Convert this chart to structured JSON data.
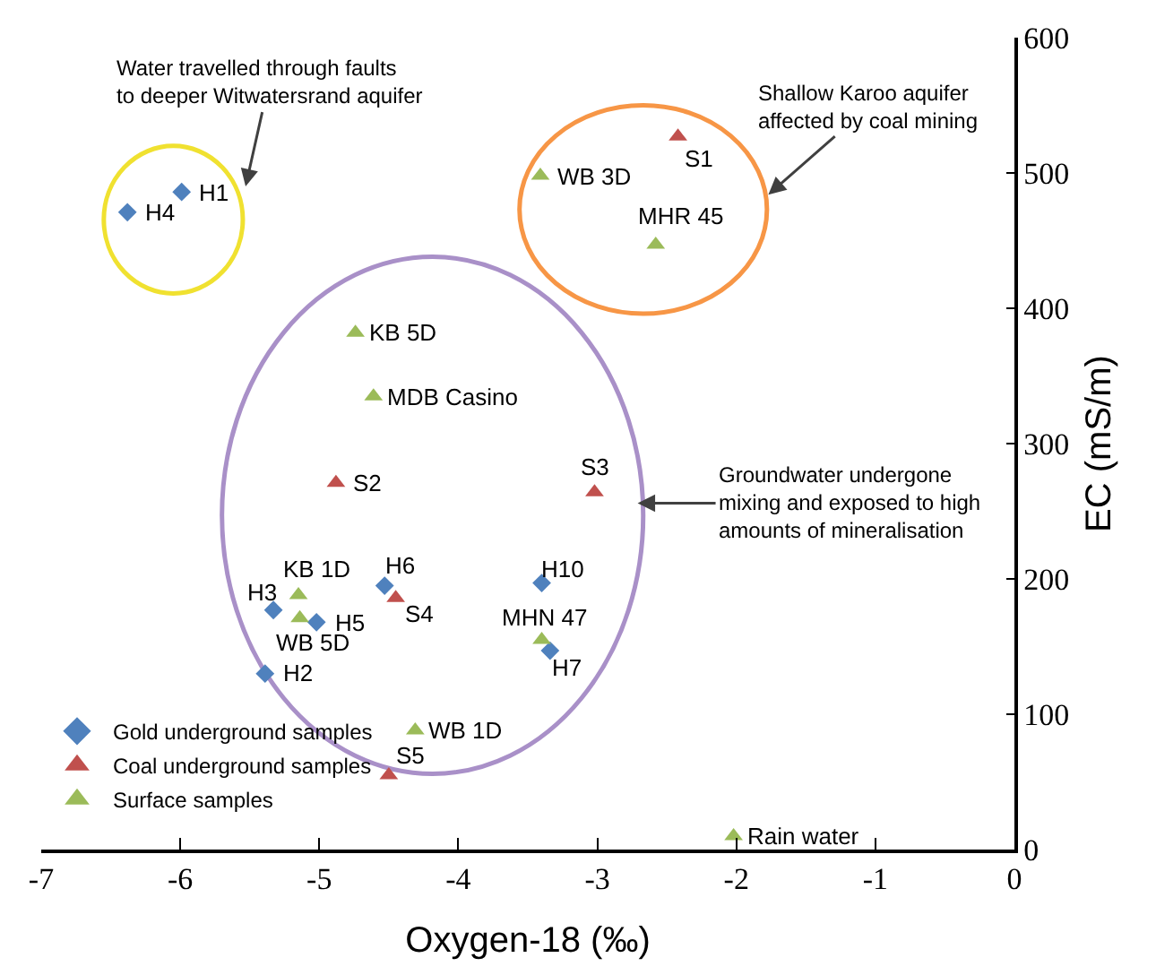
{
  "chart_data": {
    "type": "scatter",
    "xlabel": "Oxygen-18 (‰)",
    "ylabel": "EC (mS/m)",
    "xlim": [
      -7,
      0
    ],
    "xticks": [
      -7,
      -6,
      -5,
      -4,
      -3,
      -2,
      -1,
      0
    ],
    "ylim": [
      0,
      600
    ],
    "yticks": [
      0,
      100,
      200,
      300,
      400,
      500,
      600
    ],
    "grid": false,
    "legend": "bottom left",
    "series": [
      {
        "name": "Gold underground samples",
        "color": "#4f81bd",
        "marker": "diamond",
        "x": [
          -5.99,
          -6.38,
          -5.33,
          -5.02,
          -4.53,
          -3.4,
          -3.34,
          -5.39
        ],
        "values": [
          486,
          471,
          177,
          168,
          195,
          197,
          147,
          130
        ]
      },
      {
        "name": "Coal underground samples",
        "color": "#c0504d",
        "marker": "triangle",
        "x": [
          -4.88,
          -2.42,
          -3.02,
          -4.45,
          -4.5
        ],
        "values": [
          271,
          527,
          264,
          186,
          55
        ]
      },
      {
        "name": "Surface samples",
        "color": "#9bbb59",
        "marker": "triangle",
        "x": [
          -4.74,
          -4.61,
          -3.41,
          -2.58,
          -5.15,
          -5.14,
          -3.4,
          -4.31,
          -2.02
        ],
        "values": [
          382,
          335,
          498,
          447,
          188,
          171,
          155,
          88,
          10
        ]
      }
    ],
    "annotations": [
      "Water travelled through faults\nto deeper Witwatersrand aquifer",
      "Shallow Karoo aquifer\naffected by coal mining",
      "Groundwater undergone\nmixing and exposed to high\namounts of mineralisation",
      {
        "text": "H1",
        "x": -5.99,
        "y": 486
      },
      {
        "text": "H4",
        "x": -6.38,
        "y": 471
      },
      {
        "text": "KB 5D",
        "x": -4.74,
        "y": 382
      },
      {
        "text": "MDB Casino",
        "x": -4.61,
        "y": 335
      },
      {
        "text": "S2",
        "x": -4.88,
        "y": 271
      },
      {
        "text": "WB 3D",
        "x": -3.41,
        "y": 498
      },
      {
        "text": "S1",
        "x": -2.42,
        "y": 527
      },
      {
        "text": "MHR 45",
        "x": -2.58,
        "y": 447
      },
      {
        "text": "S3",
        "x": -3.02,
        "y": 264
      },
      {
        "text": "KB 1D",
        "x": -5.15,
        "y": 188
      },
      {
        "text": "H3",
        "x": -5.33,
        "y": 177
      },
      {
        "text": "WB 5D",
        "x": -5.14,
        "y": 171
      },
      {
        "text": "H5",
        "x": -5.02,
        "y": 168
      },
      {
        "text": "H6",
        "x": -4.53,
        "y": 195
      },
      {
        "text": "S4",
        "x": -4.45,
        "y": 186
      },
      {
        "text": "H10",
        "x": -3.4,
        "y": 197
      },
      {
        "text": "MHN 47",
        "x": -3.4,
        "y": 155
      },
      {
        "text": "H7",
        "x": -3.34,
        "y": 147
      },
      {
        "text": "H2",
        "x": -5.39,
        "y": 130
      },
      {
        "text": "WB 1D",
        "x": -4.31,
        "y": 88
      },
      {
        "text": "S5",
        "x": -4.5,
        "y": 55
      },
      {
        "text": "Rain water",
        "x": -2.02,
        "y": 10
      }
    ]
  }
}
